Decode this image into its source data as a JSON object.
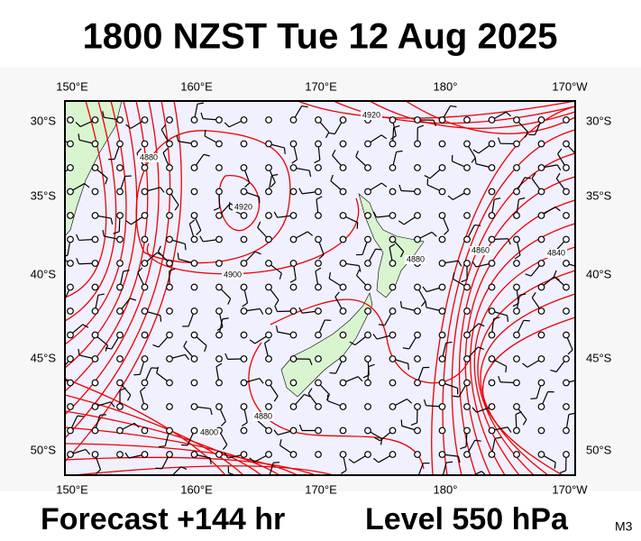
{
  "header": {
    "title": "1800 NZST Tue 12 Aug 2025"
  },
  "map": {
    "lon_labels": [
      "150°E",
      "160°E",
      "170°E",
      "180°",
      "170°W"
    ],
    "lat_labels": [
      "30°S",
      "35°S",
      "40°S",
      "45°S",
      "50°S"
    ],
    "contour_labels": [
      "4920",
      "4880",
      "4920",
      "4900",
      "4880",
      "4860",
      "4840",
      "4880",
      "4800"
    ]
  },
  "footer": {
    "forecast": "Forecast +144 hr",
    "level": "Level 550 hPa",
    "code": "M3"
  }
}
